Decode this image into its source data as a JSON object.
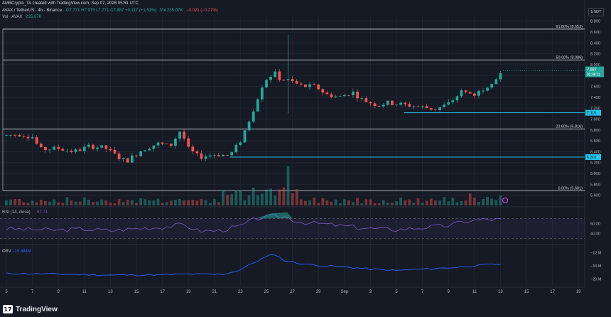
{
  "header": {
    "author_line": "AMBCrypto_TA created with TradingView.com, Sep 07, 2026 05:51 UTC",
    "symbol_line": "AVAX / TetherUS · 4h · Binance",
    "ohlc": "O7.771 H7.975 L7.771 C7.887 +0.117 (+1.51%)",
    "vol_extra": "Vol 235.07K",
    "prev_change": "−0.021 (−0.27%)",
    "vol_line": "Vol · AVAX",
    "vol_value": "235.07K",
    "currency": "USDT"
  },
  "colors": {
    "up": "#26a69a",
    "down": "#ef5350",
    "background": "#161a25",
    "fib_line": "#d1d4dc",
    "support_line": "#22c3e8",
    "rsi_line": "#7e57c2",
    "obv_line": "#2962ff"
  },
  "chart_data": [
    {
      "type": "candlestick",
      "title": "AVAX / TetherUS · 4h · Binance",
      "ylim": [
        5.4,
        8.9
      ],
      "y_ticks": [
        5.6,
        5.8,
        6.0,
        6.2,
        6.4,
        6.6,
        6.8,
        7.0,
        7.2,
        7.4,
        7.6,
        7.8,
        8.0,
        8.2,
        8.4,
        8.6,
        8.8
      ],
      "x_tick_labels": [
        "5",
        "7",
        "9",
        "11",
        "13",
        "15",
        "17",
        "19",
        "21",
        "23",
        "25",
        "27",
        "29",
        "Sep",
        "3",
        "5",
        "7",
        "9",
        "11",
        "13",
        "15",
        "17",
        "19"
      ],
      "current_price": {
        "value": "7.887",
        "countdown": "02:08:11"
      },
      "fib_levels": [
        {
          "label": "61.80% (8.653)",
          "value": 8.653
        },
        {
          "label": "50.00% (8.086)",
          "value": 8.086
        },
        {
          "label": "23.60% (6.816)",
          "value": 6.816
        },
        {
          "label": "0.00% (5.681)",
          "value": 5.681
        }
      ],
      "support_levels": [
        {
          "label": "7.115",
          "value": 7.115,
          "from_x": 15.3
        },
        {
          "label": "6.301",
          "value": 6.301,
          "from_x": 8.6
        }
      ],
      "anchors": [
        [
          0,
          6.7
        ],
        [
          0.5,
          6.72
        ],
        [
          1.0,
          6.67
        ],
        [
          1.3,
          6.44
        ],
        [
          2.0,
          6.46
        ],
        [
          2.6,
          6.4
        ],
        [
          3.2,
          6.5
        ],
        [
          3.8,
          6.47
        ],
        [
          4.2,
          6.33
        ],
        [
          4.6,
          6.22
        ],
        [
          5.2,
          6.43
        ],
        [
          5.8,
          6.55
        ],
        [
          6.3,
          6.5
        ],
        [
          6.7,
          6.8
        ],
        [
          7.0,
          6.45
        ],
        [
          7.4,
          6.3
        ],
        [
          8.0,
          6.35
        ],
        [
          8.6,
          6.33
        ],
        [
          9.0,
          6.6
        ],
        [
          9.4,
          7.05
        ],
        [
          9.9,
          7.7
        ],
        [
          10.3,
          7.85
        ],
        [
          10.5,
          7.75
        ],
        [
          10.9,
          7.7
        ],
        [
          11.4,
          7.6
        ],
        [
          11.9,
          7.6
        ],
        [
          12.3,
          7.45
        ],
        [
          12.8,
          7.4
        ],
        [
          13.3,
          7.5
        ],
        [
          13.7,
          7.35
        ],
        [
          14.3,
          7.25
        ],
        [
          14.6,
          7.3
        ],
        [
          15.0,
          7.28
        ],
        [
          15.5,
          7.25
        ],
        [
          16.0,
          7.22
        ],
        [
          16.5,
          7.18
        ],
        [
          17.0,
          7.28
        ],
        [
          17.5,
          7.5
        ],
        [
          18.0,
          7.45
        ],
        [
          18.5,
          7.62
        ],
        [
          18.9,
          7.78
        ],
        [
          19.1,
          7.89
        ]
      ],
      "spikes": [
        {
          "x": 10.8,
          "high": 8.55,
          "low": 7.1
        }
      ],
      "volume": {
        "label": "Vol · AVAX",
        "value": "235.07K"
      }
    },
    {
      "type": "line",
      "title": "RSI (14, close)",
      "last_value": "67.71",
      "y_ticks": [
        "60.00",
        "40.00"
      ],
      "band": [
        30,
        70
      ],
      "anchors": [
        [
          0,
          50
        ],
        [
          1,
          48
        ],
        [
          2,
          47
        ],
        [
          3,
          49
        ],
        [
          4,
          46
        ],
        [
          5,
          50
        ],
        [
          6,
          53
        ],
        [
          6.8,
          58
        ],
        [
          7.4,
          45
        ],
        [
          8.2,
          46
        ],
        [
          9.0,
          55
        ],
        [
          9.6,
          70
        ],
        [
          10.2,
          74
        ],
        [
          10.8,
          73
        ],
        [
          11.2,
          63
        ],
        [
          12,
          60
        ],
        [
          13,
          55
        ],
        [
          14,
          50
        ],
        [
          15,
          48
        ],
        [
          16,
          52
        ],
        [
          17,
          56
        ],
        [
          17.6,
          64
        ],
        [
          18.3,
          68
        ],
        [
          19.1,
          67.7
        ]
      ]
    },
    {
      "type": "line",
      "title": "OBV",
      "last_value": "−15.494M",
      "y_ticks": [
        "−12.M",
        "−16.M",
        "−20.M"
      ],
      "ylim": [
        -22,
        -10
      ],
      "anchors": [
        [
          0,
          -18.3
        ],
        [
          2,
          -18.5
        ],
        [
          4,
          -18.8
        ],
        [
          6,
          -18.7
        ],
        [
          7,
          -18.5
        ],
        [
          8.3,
          -18.6
        ],
        [
          8.9,
          -17.5
        ],
        [
          9.4,
          -15.5
        ],
        [
          9.9,
          -13.6
        ],
        [
          10.3,
          -12.4
        ],
        [
          10.7,
          -14.5
        ],
        [
          11.3,
          -15.3
        ],
        [
          12,
          -15.9
        ],
        [
          13,
          -16.3
        ],
        [
          14,
          -17.0
        ],
        [
          15,
          -17.4
        ],
        [
          16,
          -17.0
        ],
        [
          17,
          -16.6
        ],
        [
          17.6,
          -16.3
        ],
        [
          18.4,
          -15.7
        ],
        [
          19.1,
          -15.5
        ]
      ]
    }
  ]
}
